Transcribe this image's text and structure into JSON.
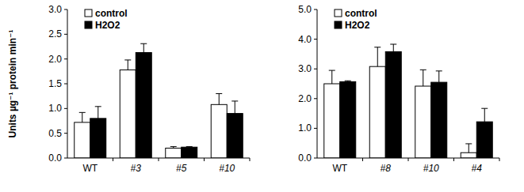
{
  "chart_data": [
    {
      "type": "bar",
      "y_label": "Units µg⁻¹ protein min⁻¹",
      "categories": [
        "WT",
        "#3",
        "#5",
        "#10"
      ],
      "series": [
        {
          "name": "control",
          "color": "#ffffff",
          "values": [
            0.72,
            1.78,
            0.2,
            1.08
          ],
          "errors": [
            0.2,
            0.2,
            0.03,
            0.22
          ]
        },
        {
          "name": "H2O2",
          "color": "#000000",
          "values": [
            0.8,
            2.13,
            0.22,
            0.9
          ],
          "errors": [
            0.24,
            0.18,
            0.01,
            0.25
          ]
        }
      ],
      "ylim": [
        0,
        3
      ],
      "yticks": [
        {
          "value": 0,
          "label": "0.0"
        },
        {
          "value": 0.5,
          "label": "0.5"
        },
        {
          "value": 1,
          "label": "1.0"
        },
        {
          "value": 1.5,
          "label": "1.5"
        },
        {
          "value": 2,
          "label": "2.0"
        },
        {
          "value": 2.5,
          "label": "2.5"
        },
        {
          "value": 3,
          "label": "3.0"
        }
      ],
      "legend": "upper left",
      "grid": false
    },
    {
      "type": "bar",
      "categories": [
        "WT",
        "#8",
        "#10",
        "#4"
      ],
      "series": [
        {
          "name": "control",
          "color": "#ffffff",
          "values": [
            2.5,
            3.08,
            2.42,
            0.18
          ],
          "errors": [
            0.45,
            0.65,
            0.55,
            0.3
          ]
        },
        {
          "name": "H2O2",
          "color": "#000000",
          "values": [
            2.57,
            3.58,
            2.55,
            1.22
          ],
          "errors": [
            0.03,
            0.25,
            0.38,
            0.45
          ]
        }
      ],
      "ylim": [
        0,
        5
      ],
      "yticks": [
        {
          "value": 0,
          "label": "0.0"
        },
        {
          "value": 1,
          "label": "1.0"
        },
        {
          "value": 2,
          "label": "2.0"
        },
        {
          "value": 3,
          "label": "3.0"
        },
        {
          "value": 4,
          "label": "4.0"
        },
        {
          "value": 5,
          "label": "5.0"
        }
      ],
      "legend": "upper left",
      "grid": false
    }
  ]
}
